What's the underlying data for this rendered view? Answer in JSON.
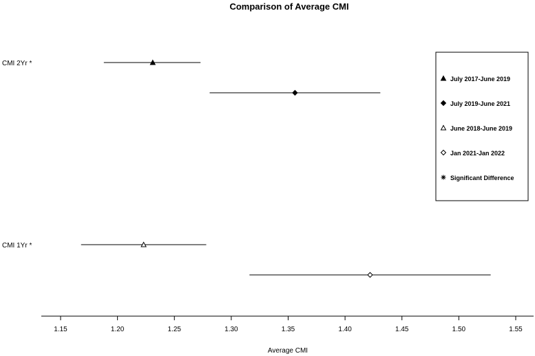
{
  "chart_data": {
    "type": "scatter",
    "title": "Comparison of Average CMI",
    "xlabel": "Average CMI",
    "ylabel": "",
    "xlim": [
      1.125,
      1.575
    ],
    "x_ticks": [
      1.15,
      1.2,
      1.25,
      1.3,
      1.35,
      1.4,
      1.45,
      1.5,
      1.55
    ],
    "x_tick_labels": [
      "1.15",
      "1.20",
      "1.25",
      "1.30",
      "1.35",
      "1.40",
      "1.45",
      "1.50",
      "1.55"
    ],
    "row_labels": [
      "CMI 2Yr *",
      "CMI 1Yr *"
    ],
    "series": [
      {
        "name": "July 2017-June 2019",
        "marker": "triangle-filled",
        "estimate": 1.231,
        "ci": [
          1.188,
          1.273
        ],
        "group": "CMI 2Yr *"
      },
      {
        "name": "July 2019-June 2021",
        "marker": "diamond-filled",
        "estimate": 1.356,
        "ci": [
          1.281,
          1.431
        ],
        "group": "CMI 2Yr *"
      },
      {
        "name": "June 2018-June 2019",
        "marker": "triangle-open",
        "estimate": 1.223,
        "ci": [
          1.168,
          1.278
        ],
        "group": "CMI 1Yr *"
      },
      {
        "name": "Jan 2021-Jan 2022",
        "marker": "diamond-open",
        "estimate": 1.422,
        "ci": [
          1.316,
          1.528
        ],
        "group": "CMI 1Yr *"
      }
    ],
    "legend": [
      {
        "marker": "triangle-filled",
        "label": "July 2017-June 2019"
      },
      {
        "marker": "diamond-filled",
        "label": "July 2019-June 2021"
      },
      {
        "marker": "triangle-open",
        "label": "June 2018-June 2019"
      },
      {
        "marker": "diamond-open",
        "label": "Jan 2021-Jan 2022"
      },
      {
        "marker": "asterisk",
        "label": "Significant Difference"
      }
    ],
    "legend_position": "right",
    "grid": false
  }
}
